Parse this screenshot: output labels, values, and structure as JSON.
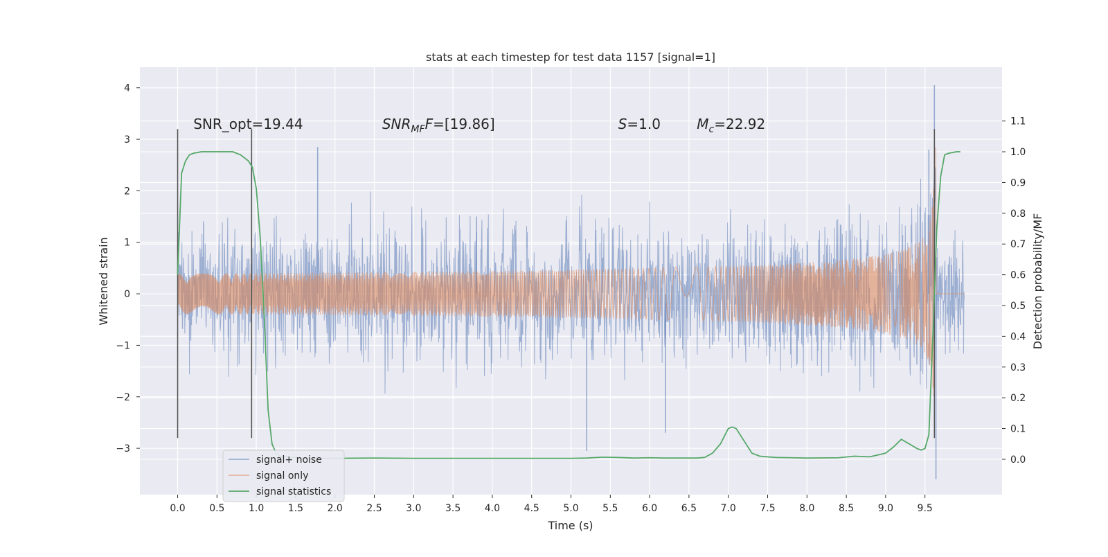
{
  "chart_data": {
    "type": "line",
    "title": "stats at each timestep for test data 1157 [signal=1]",
    "xlabel": "Time (s)",
    "ylabel": "Whitened strain",
    "y2label": "Detection probability/MF",
    "xlim": [
      -0.48,
      10.48
    ],
    "ylim": [
      -3.9,
      4.4
    ],
    "y2lim": [
      -0.115,
      1.275
    ],
    "x_ticks": [
      "0.0",
      "0.5",
      "1.0",
      "1.5",
      "2.0",
      "2.5",
      "3.0",
      "3.5",
      "4.0",
      "4.5",
      "5.0",
      "5.5",
      "6.0",
      "6.5",
      "7.0",
      "7.5",
      "8.0",
      "8.5",
      "9.0",
      "9.5"
    ],
    "y_ticks": [
      "4",
      "3",
      "2",
      "1",
      "0",
      "−1",
      "−2",
      "−3"
    ],
    "y2_ticks": [
      "1.1",
      "1.0",
      "0.9",
      "0.8",
      "0.7",
      "0.6",
      "0.5",
      "0.4",
      "0.3",
      "0.2",
      "0.1",
      "0.0"
    ],
    "grid": true,
    "legend_position": "lower-left",
    "colors": {
      "background": "#eaeaf2",
      "noise": "#4c72b0",
      "signal": "#dd8452",
      "stats": "#55a868",
      "marker": "#555555"
    },
    "annotations": [
      {
        "id": "snr-opt",
        "text": "SNR_opt=19.44",
        "x": 0.2,
        "y": 3.3
      },
      {
        "id": "snr-mf",
        "text": "=[19.86]",
        "math_main": "SNR",
        "math_sub": "MF",
        "math_after": "F",
        "x": 2.6,
        "y": 3.3
      },
      {
        "id": "s",
        "text": "=1.0",
        "math_main": "S",
        "x": 5.6,
        "y": 3.3
      },
      {
        "id": "mc",
        "text": "=22.92",
        "math_main": "M",
        "math_sub": "c",
        "x": 6.6,
        "y": 3.3
      }
    ],
    "vertical_markers": [
      {
        "x": 0.0,
        "y_range": [
          -2.8,
          3.2
        ]
      },
      {
        "x": 0.94,
        "y_range": [
          -2.8,
          3.2
        ]
      },
      {
        "x": 9.62,
        "y_range": [
          -2.8,
          3.2
        ]
      }
    ],
    "series": [
      {
        "name": "signal+ noise",
        "kind": "noise",
        "x_range": [
          0.0,
          10.0
        ],
        "core_amplitude": 0.85,
        "notable_peaks": [
          [
            1.78,
            2.85
          ],
          [
            3.8,
            1.5
          ],
          [
            5.2,
            -3.05
          ],
          [
            6.2,
            -2.7
          ],
          [
            9.55,
            2.8
          ],
          [
            9.62,
            4.05
          ],
          [
            9.64,
            -3.6
          ]
        ]
      },
      {
        "name": "signal only",
        "kind": "chirp",
        "x_range": [
          0.0,
          10.0
        ],
        "merger_time": 9.62,
        "peak_amplitude": 3.0
      },
      {
        "name": "signal statistics",
        "kind": "stats",
        "axis": "right",
        "x": [
          0.0,
          0.05,
          0.1,
          0.15,
          0.2,
          0.3,
          0.4,
          0.5,
          0.6,
          0.7,
          0.8,
          0.85,
          0.9,
          0.95,
          1.0,
          1.05,
          1.1,
          1.15,
          1.2,
          1.25,
          1.3,
          1.35,
          1.4,
          1.5,
          1.6,
          1.8,
          2.0,
          2.5,
          3.0,
          3.5,
          4.0,
          4.5,
          5.0,
          5.2,
          5.4,
          5.6,
          5.8,
          6.0,
          6.2,
          6.4,
          6.6,
          6.7,
          6.8,
          6.9,
          7.0,
          7.05,
          7.1,
          7.2,
          7.3,
          7.4,
          7.6,
          8.0,
          8.4,
          8.6,
          8.8,
          9.0,
          9.1,
          9.2,
          9.3,
          9.4,
          9.45,
          9.5,
          9.55,
          9.6,
          9.65,
          9.7,
          9.75,
          9.8,
          9.9,
          9.95
        ],
        "y": [
          0.6,
          0.93,
          0.97,
          0.99,
          0.995,
          1.0,
          1.0,
          1.0,
          1.0,
          1.0,
          0.99,
          0.98,
          0.97,
          0.95,
          0.88,
          0.72,
          0.47,
          0.16,
          0.05,
          0.02,
          0.01,
          0.008,
          0.007,
          0.006,
          0.004,
          0.003,
          0.003,
          0.004,
          0.003,
          0.003,
          0.003,
          0.003,
          0.003,
          0.004,
          0.007,
          0.006,
          0.004,
          0.005,
          0.004,
          0.004,
          0.004,
          0.006,
          0.02,
          0.05,
          0.1,
          0.105,
          0.1,
          0.06,
          0.02,
          0.01,
          0.006,
          0.004,
          0.005,
          0.01,
          0.008,
          0.02,
          0.04,
          0.065,
          0.05,
          0.035,
          0.03,
          0.035,
          0.08,
          0.4,
          0.75,
          0.92,
          0.99,
          0.995,
          1.0,
          1.0
        ]
      }
    ]
  }
}
